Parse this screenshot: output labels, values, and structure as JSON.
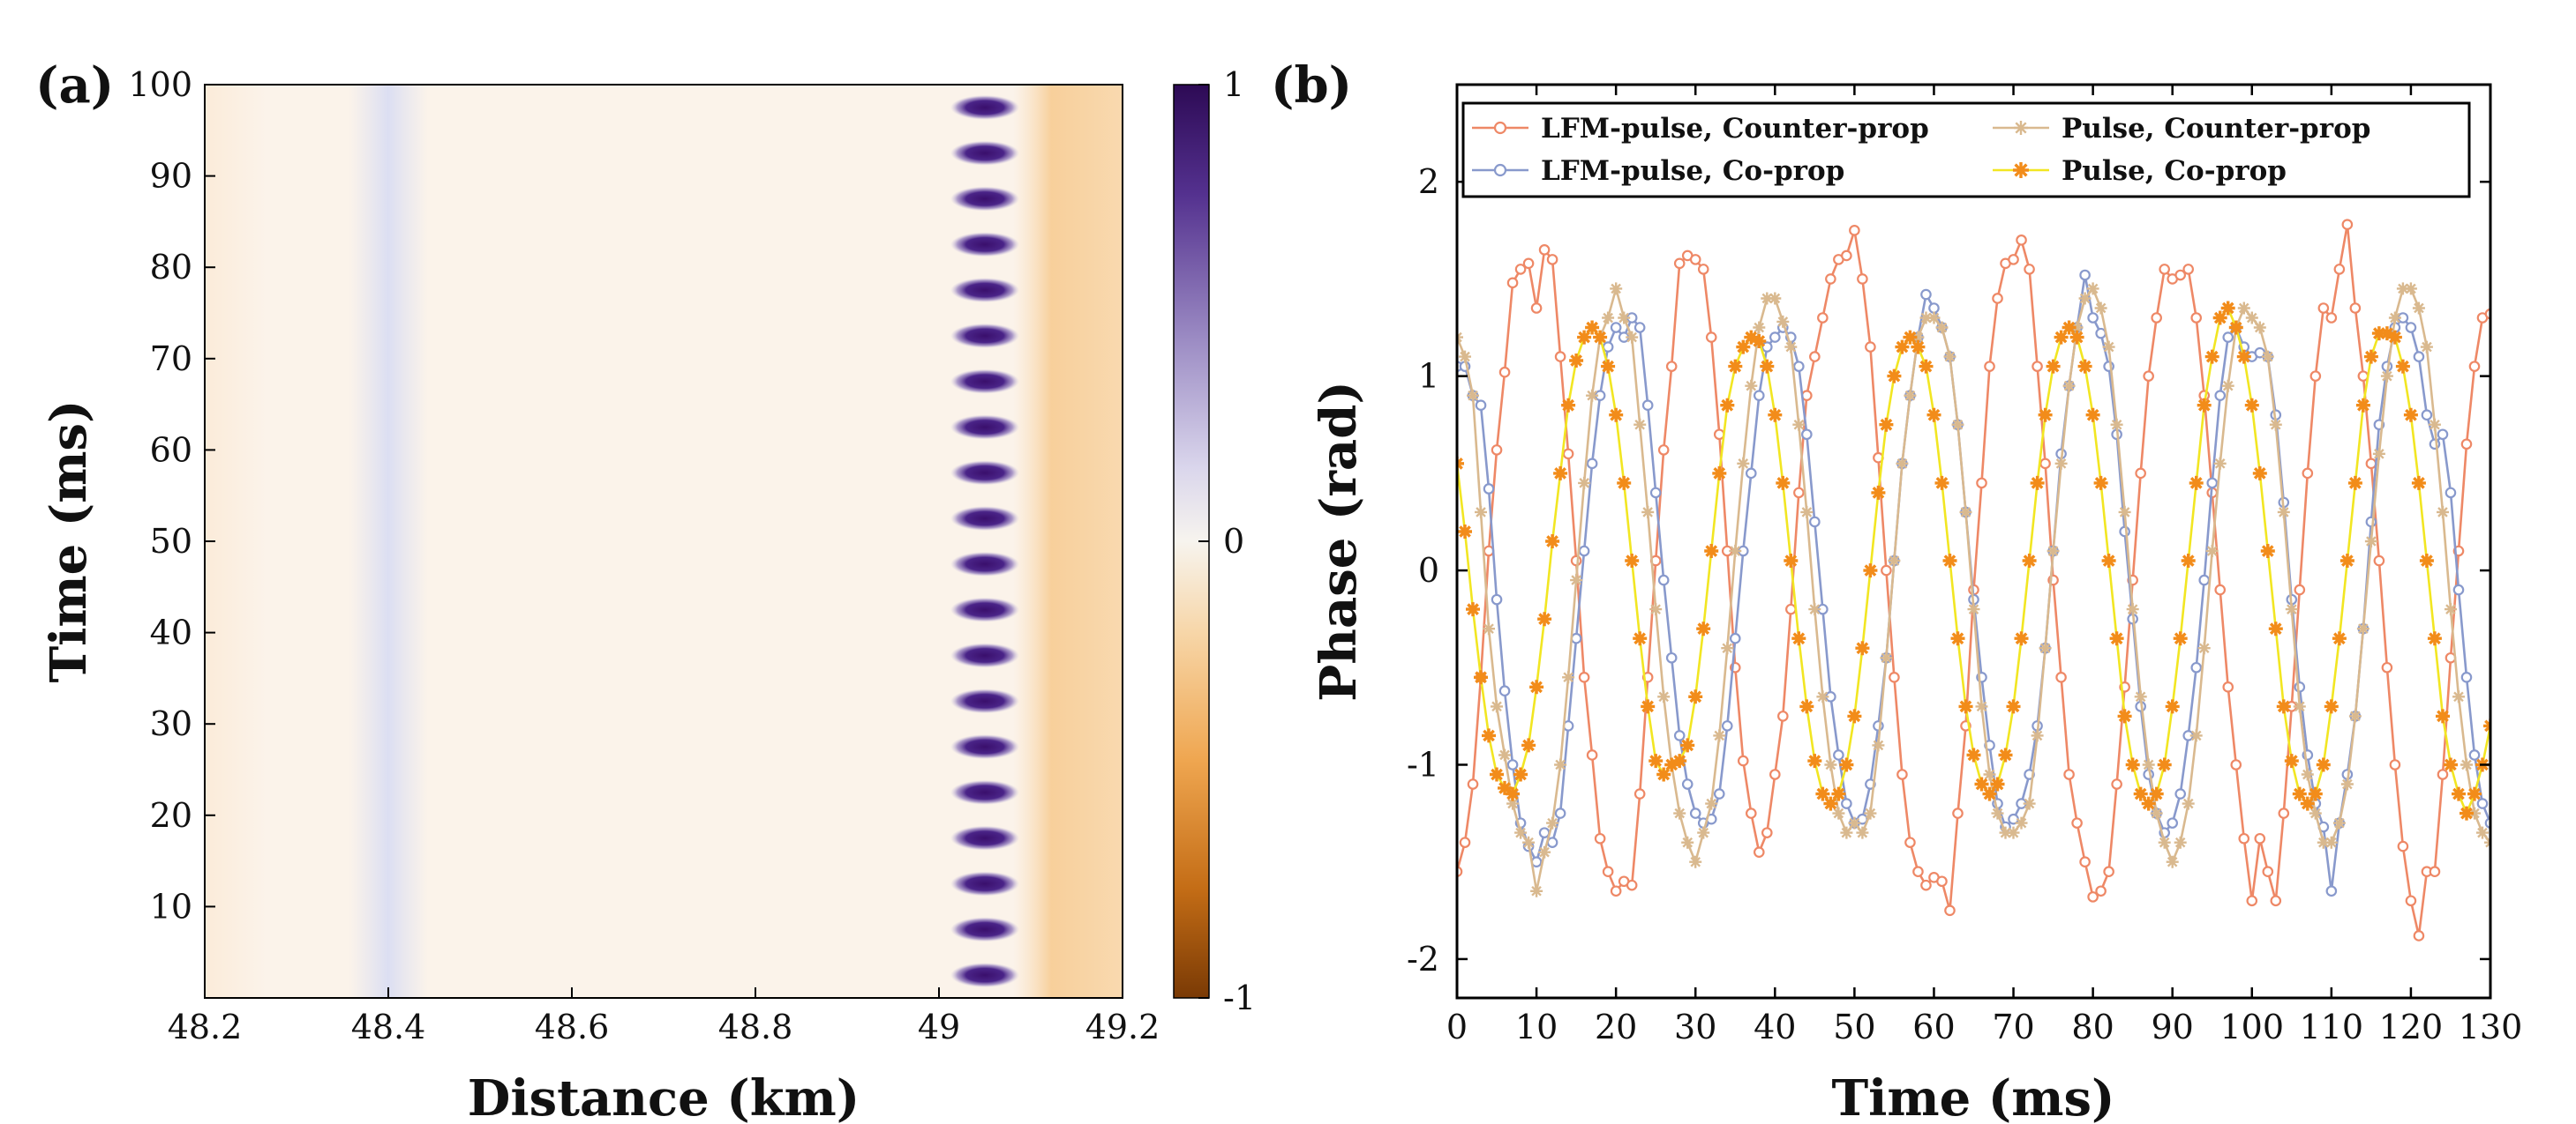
{
  "colors": {
    "lfm_counter": "#EE8866",
    "lfm_co": "#8899CC",
    "pulse_counter": "#D9B98F",
    "pulse_co_line": "#F2E622",
    "pulse_co_marker": "#F28C1A",
    "cmap_purple": "#3F1470",
    "cmap_orange": "#8B4208",
    "background_pale": "#FBF3EA"
  },
  "chart_data": [
    {
      "panel_label": "(a)",
      "type": "heatmap",
      "xlabel": "Distance (km)",
      "ylabel": "Time (ms)",
      "xlim": [
        48.2,
        49.2
      ],
      "ylim": [
        0,
        100
      ],
      "x_ticks": [
        48.2,
        48.4,
        48.6,
        48.8,
        49,
        49.2
      ],
      "x_tick_labels": [
        "48.2",
        "48.4",
        "48.6",
        "48.8",
        "49",
        "49.2"
      ],
      "y_ticks": [
        10,
        20,
        30,
        40,
        50,
        60,
        70,
        80,
        90,
        100
      ],
      "y_tick_labels": [
        "10",
        "20",
        "30",
        "40",
        "50",
        "60",
        "70",
        "80",
        "90",
        "100"
      ],
      "colorbar": {
        "min": -1,
        "max": 1,
        "ticks": [
          1,
          0,
          -1
        ],
        "tick_labels": [
          "1",
          "0",
          "-1"
        ]
      },
      "features": {
        "vibration_position_km": 49.05,
        "vibration_width_km": 0.075,
        "vibration_period_ms": 5,
        "vibration_first_peak_ms": 2.5,
        "pale_blue_band_km": 48.4,
        "orange_band_km": [
          49.1,
          49.2
        ]
      }
    },
    {
      "panel_label": "(b)",
      "type": "line",
      "xlabel": "Time (ms)",
      "ylabel": "Phase (rad)",
      "xlim": [
        0,
        130
      ],
      "ylim": [
        -2.2,
        2.5
      ],
      "x_ticks": [
        0,
        10,
        20,
        30,
        40,
        50,
        60,
        70,
        80,
        90,
        100,
        110,
        120,
        130
      ],
      "x_tick_labels": [
        "0",
        "10",
        "20",
        "30",
        "40",
        "50",
        "60",
        "70",
        "80",
        "90",
        "100",
        "110",
        "120",
        "130"
      ],
      "y_ticks": [
        2,
        1,
        0,
        -1,
        -2
      ],
      "y_tick_labels": [
        "2",
        "1",
        "0",
        "-1",
        "-2"
      ],
      "sampling_step_ms": 1,
      "legend": [
        "LFM-pulse, Counter-prop",
        "Pulse, Counter-prop",
        "LFM-pulse, Co-prop",
        "Pulse, Co-prop"
      ],
      "series": [
        {
          "name": "LFM-pulse, Counter-prop",
          "color_key": "lfm_counter",
          "marker": "circle",
          "amplitude": 1.6,
          "period_ms": 20.5,
          "phase_ms": 6.9,
          "offset": 0,
          "values": [
            -1.55,
            -1.4,
            -1.1,
            -0.55,
            0.1,
            0.62,
            1.02,
            1.48,
            1.55,
            1.58,
            1.35,
            1.65,
            1.6,
            1.1,
            0.6,
            0.05,
            -0.55,
            -0.95,
            -1.38,
            -1.55,
            -1.65,
            -1.6,
            -1.62,
            -1.15,
            -0.55,
            0.05,
            0.62,
            1.05,
            1.58,
            1.62,
            1.6,
            1.55,
            1.2,
            0.7,
            0.1,
            -0.5,
            -0.98,
            -1.25,
            -1.45,
            -1.35,
            -1.05,
            -0.75,
            -0.2,
            0.4,
            0.9,
            1.1,
            1.3,
            1.5,
            1.6,
            1.62,
            1.75,
            1.5,
            1.15,
            0.58,
            0.0,
            -0.55,
            -1.05,
            -1.4,
            -1.55,
            -1.62,
            -1.58,
            -1.6,
            -1.75,
            -1.25,
            -0.8,
            -0.1,
            0.45,
            1.05,
            1.4,
            1.58,
            1.6,
            1.7,
            1.55,
            1.05,
            0.55,
            -0.05,
            -0.55,
            -1.05,
            -1.3,
            -1.5,
            -1.68,
            -1.65,
            -1.55,
            -1.1,
            -0.6,
            -0.05,
            0.5,
            1.0,
            1.3,
            1.55,
            1.5,
            1.52,
            1.55,
            1.3,
            0.9,
            0.4,
            -0.1,
            -0.6,
            -1.0,
            -1.38,
            -1.7,
            -1.38,
            -1.55,
            -1.7,
            -1.25,
            -0.7,
            -0.1,
            0.5,
            1.0,
            1.35,
            1.3,
            1.55,
            1.78,
            1.35,
            1.0,
            0.55,
            0.05,
            -0.5,
            -1.0,
            -1.42,
            -1.7,
            -1.88,
            -1.55,
            -1.55,
            -1.05,
            -0.45,
            0.1,
            0.65,
            1.05,
            1.3,
            1.32
          ]
        },
        {
          "name": "LFM-pulse, Co-prop",
          "color_key": "lfm_co",
          "marker": "circle",
          "amplitude": 1.32,
          "period_ms": 20.3,
          "phase_ms": 1.3,
          "offset": 0,
          "values": [
            1.05,
            1.05,
            0.9,
            0.85,
            0.42,
            -0.15,
            -0.62,
            -1.0,
            -1.3,
            -1.42,
            -1.5,
            -1.35,
            -1.4,
            -1.25,
            -0.8,
            -0.35,
            0.1,
            0.55,
            0.9,
            1.15,
            1.25,
            1.2,
            1.3,
            1.25,
            0.85,
            0.4,
            -0.05,
            -0.45,
            -0.85,
            -1.1,
            -1.25,
            -1.3,
            -1.28,
            -1.15,
            -0.8,
            -0.35,
            0.1,
            0.5,
            0.9,
            1.15,
            1.2,
            1.25,
            1.2,
            1.05,
            0.7,
            0.25,
            -0.2,
            -0.65,
            -0.95,
            -1.2,
            -1.3,
            -1.28,
            -1.1,
            -0.8,
            -0.45,
            0.05,
            0.55,
            0.9,
            1.2,
            1.42,
            1.35,
            1.25,
            1.1,
            0.75,
            0.3,
            -0.15,
            -0.55,
            -0.9,
            -1.2,
            -1.32,
            -1.28,
            -1.2,
            -1.05,
            -0.8,
            -0.4,
            0.1,
            0.6,
            0.95,
            1.25,
            1.52,
            1.3,
            1.22,
            1.05,
            0.7,
            0.2,
            -0.25,
            -0.7,
            -1.05,
            -1.25,
            -1.35,
            -1.3,
            -1.15,
            -0.85,
            -0.5,
            -0.05,
            0.45,
            0.9,
            1.2,
            1.25,
            1.15,
            1.1,
            1.12,
            1.1,
            0.8,
            0.35,
            -0.15,
            -0.6,
            -0.95,
            -1.2,
            -1.32,
            -1.65,
            -1.3,
            -1.05,
            -0.75,
            -0.3,
            0.25,
            0.75,
            1.05,
            1.25,
            1.3,
            1.25,
            1.1,
            0.8,
            0.65,
            0.7,
            0.4,
            -0.1,
            -0.55,
            -0.95,
            -1.2,
            -1.3
          ]
        },
        {
          "name": "Pulse, Counter-prop",
          "color_key": "pulse_counter",
          "marker": "star",
          "amplitude": 1.4,
          "period_ms": 20.0,
          "phase_ms": 0.8,
          "offset": 0,
          "values": [
            1.2,
            1.1,
            0.9,
            0.3,
            -0.3,
            -0.7,
            -0.95,
            -1.2,
            -1.35,
            -1.4,
            -1.65,
            -1.45,
            -1.3,
            -1.0,
            -0.55,
            -0.05,
            0.45,
            0.9,
            1.2,
            1.3,
            1.45,
            1.3,
            1.2,
            0.75,
            0.3,
            -0.2,
            -0.65,
            -1.0,
            -1.25,
            -1.4,
            -1.5,
            -1.35,
            -1.2,
            -0.85,
            -0.4,
            0.1,
            0.55,
            0.95,
            1.25,
            1.4,
            1.4,
            1.28,
            1.15,
            0.75,
            0.3,
            -0.2,
            -0.65,
            -1.0,
            -1.25,
            -1.35,
            -1.3,
            -1.35,
            -1.25,
            -0.9,
            -0.45,
            0.05,
            0.55,
            0.9,
            1.2,
            1.3,
            1.3,
            1.25,
            1.1,
            0.75,
            0.3,
            -0.2,
            -0.7,
            -1.05,
            -1.25,
            -1.35,
            -1.35,
            -1.3,
            -1.2,
            -0.85,
            -0.4,
            0.1,
            0.55,
            0.95,
            1.25,
            1.4,
            1.45,
            1.35,
            1.15,
            0.75,
            0.3,
            -0.2,
            -0.65,
            -1.0,
            -1.25,
            -1.4,
            -1.5,
            -1.4,
            -1.2,
            -0.85,
            -0.4,
            0.1,
            0.55,
            0.95,
            1.25,
            1.35,
            1.3,
            1.25,
            1.1,
            0.75,
            0.3,
            -0.2,
            -0.7,
            -1.05,
            -1.25,
            -1.4,
            -1.4,
            -1.3,
            -1.1,
            -0.75,
            -0.3,
            0.15,
            0.6,
            1.0,
            1.3,
            1.45,
            1.45,
            1.35,
            1.15,
            0.75,
            0.3,
            -0.2,
            -0.65,
            -1.0,
            -1.25,
            -1.35,
            -1.4
          ]
        },
        {
          "name": "Pulse, Co-prop",
          "color_key": "pulse_co_line",
          "marker_color_key": "pulse_co_marker",
          "marker": "asterisk",
          "amplitude": 1.2,
          "period_ms": 18.7,
          "phase_ms": -0.6,
          "offset": 0,
          "values": [
            0.55,
            0.2,
            -0.2,
            -0.55,
            -0.85,
            -1.05,
            -1.12,
            -1.15,
            -1.05,
            -0.9,
            -0.6,
            -0.25,
            0.15,
            0.5,
            0.85,
            1.08,
            1.2,
            1.25,
            1.2,
            1.05,
            0.8,
            0.45,
            0.05,
            -0.35,
            -0.7,
            -0.98,
            -1.05,
            -1.0,
            -0.98,
            -0.9,
            -0.65,
            -0.3,
            0.1,
            0.5,
            0.85,
            1.05,
            1.15,
            1.2,
            1.18,
            1.05,
            0.8,
            0.45,
            0.05,
            -0.35,
            -0.7,
            -0.98,
            -1.15,
            -1.2,
            -1.15,
            -1.0,
            -0.75,
            -0.4,
            0.0,
            0.4,
            0.75,
            1.0,
            1.15,
            1.2,
            1.15,
            1.05,
            0.8,
            0.45,
            0.05,
            -0.35,
            -0.7,
            -0.95,
            -1.1,
            -1.15,
            -1.1,
            -0.95,
            -0.7,
            -0.35,
            0.05,
            0.45,
            0.8,
            1.05,
            1.2,
            1.25,
            1.2,
            1.05,
            0.8,
            0.45,
            0.05,
            -0.35,
            -0.75,
            -1.0,
            -1.15,
            -1.2,
            -1.15,
            -1.0,
            -0.7,
            -0.35,
            0.05,
            0.45,
            0.85,
            1.1,
            1.3,
            1.35,
            1.25,
            1.1,
            0.85,
            0.5,
            0.1,
            -0.3,
            -0.7,
            -0.98,
            -1.15,
            -1.2,
            -1.15,
            -1.0,
            -0.7,
            -0.35,
            0.05,
            0.45,
            0.85,
            1.1,
            1.22,
            1.22,
            1.2,
            1.05,
            0.8,
            0.45,
            0.05,
            -0.35,
            -0.75,
            -1.0,
            -1.15,
            -1.25,
            -1.15,
            -1.0,
            -0.8
          ]
        }
      ]
    }
  ]
}
